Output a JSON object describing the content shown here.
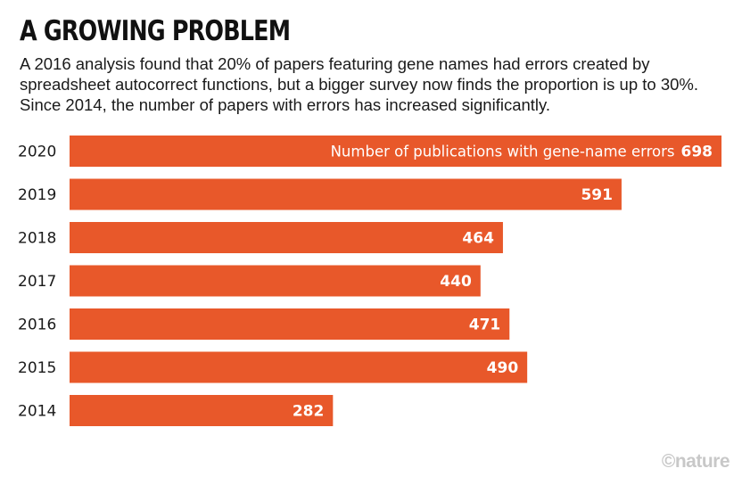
{
  "header": {
    "title": "A GROWING PROBLEM",
    "subtitle": "A 2016 analysis found that 20% of papers featuring gene names had errors created by spreadsheet autocorrect functions, but a bigger survey now finds the proportion is up to 30%. Since 2014, the number of papers with errors has increased significantly."
  },
  "chart_data": {
    "type": "bar",
    "orientation": "horizontal",
    "categories": [
      "2020",
      "2019",
      "2018",
      "2017",
      "2016",
      "2015",
      "2014"
    ],
    "series": [
      {
        "name": "Number of publications with gene-name errors",
        "values": [
          698,
          591,
          464,
          440,
          471,
          490,
          282
        ]
      }
    ],
    "value_labels": [
      "698",
      "591",
      "464",
      "440",
      "471",
      "490",
      "282"
    ],
    "bar_color": "#e8582a",
    "grid": false,
    "xlim": [
      0,
      698
    ]
  },
  "credit": "©nature"
}
